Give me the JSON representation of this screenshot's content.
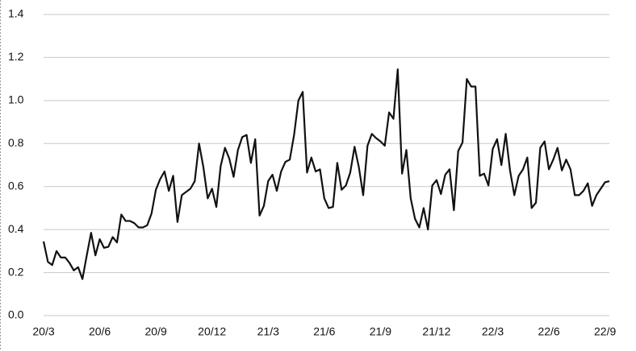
{
  "chart_data": {
    "type": "line",
    "categories": [
      "20/3",
      null,
      null,
      null,
      null,
      null,
      null,
      null,
      null,
      null,
      null,
      null,
      null,
      "20/6",
      null,
      null,
      null,
      null,
      null,
      null,
      null,
      null,
      null,
      null,
      null,
      null,
      "20/9",
      null,
      null,
      null,
      null,
      null,
      null,
      null,
      null,
      null,
      null,
      null,
      null,
      "20/12",
      null,
      null,
      null,
      null,
      null,
      null,
      null,
      null,
      null,
      null,
      null,
      null,
      "21/3",
      null,
      null,
      null,
      null,
      null,
      null,
      null,
      null,
      null,
      null,
      null,
      null,
      "21/6",
      null,
      null,
      null,
      null,
      null,
      null,
      null,
      null,
      null,
      null,
      null,
      null,
      "21/9",
      null,
      null,
      null,
      null,
      null,
      null,
      null,
      null,
      null,
      null,
      null,
      null,
      "21/12",
      null,
      null,
      null,
      null,
      null,
      null,
      null,
      null,
      null,
      null,
      null,
      null,
      "22/3",
      null,
      null,
      null,
      null,
      null,
      null,
      null,
      null,
      null,
      null,
      null,
      null,
      "22/6",
      null,
      null,
      null,
      null,
      null,
      null,
      null,
      null,
      null,
      null,
      null,
      null,
      "22/9",
      null
    ],
    "values": [
      0.345,
      0.25,
      0.235,
      0.3,
      0.27,
      0.27,
      0.245,
      0.21,
      0.225,
      0.17,
      0.28,
      0.385,
      0.28,
      0.355,
      0.315,
      0.32,
      0.365,
      0.34,
      0.47,
      0.44,
      0.44,
      0.43,
      0.41,
      0.41,
      0.42,
      0.475,
      0.585,
      0.635,
      0.67,
      0.58,
      0.65,
      0.435,
      0.56,
      0.575,
      0.59,
      0.625,
      0.8,
      0.69,
      0.545,
      0.59,
      0.505,
      0.695,
      0.78,
      0.73,
      0.645,
      0.77,
      0.83,
      0.84,
      0.71,
      0.82,
      0.465,
      0.51,
      0.625,
      0.655,
      0.58,
      0.67,
      0.715,
      0.725,
      0.84,
      1.0,
      1.04,
      0.665,
      0.735,
      0.67,
      0.68,
      0.545,
      0.5,
      0.505,
      0.71,
      0.585,
      0.605,
      0.665,
      0.785,
      0.69,
      0.56,
      0.79,
      0.845,
      0.825,
      0.81,
      0.79,
      0.945,
      0.915,
      1.145,
      0.66,
      0.77,
      0.545,
      0.45,
      0.41,
      0.5,
      0.4,
      0.605,
      0.63,
      0.565,
      0.655,
      0.68,
      0.49,
      0.765,
      0.805,
      1.1,
      1.065,
      1.065,
      0.65,
      0.66,
      0.605,
      0.775,
      0.82,
      0.7,
      0.845,
      0.675,
      0.56,
      0.65,
      0.68,
      0.735,
      0.5,
      0.525,
      0.78,
      0.81,
      0.68,
      0.725,
      0.78,
      0.675,
      0.725,
      0.68,
      0.56,
      0.56,
      0.58,
      0.615,
      0.51,
      0.56,
      0.59,
      0.62,
      0.625
    ],
    "color": "#111111",
    "ylim": [
      0,
      1.4
    ],
    "yticks": [
      {
        "value": 0,
        "label": "0.0"
      },
      0.2,
      0.4,
      0.6,
      0.8,
      {
        "value": 1,
        "label": "1.0"
      },
      1.2,
      1.4
    ],
    "grid": true
  }
}
